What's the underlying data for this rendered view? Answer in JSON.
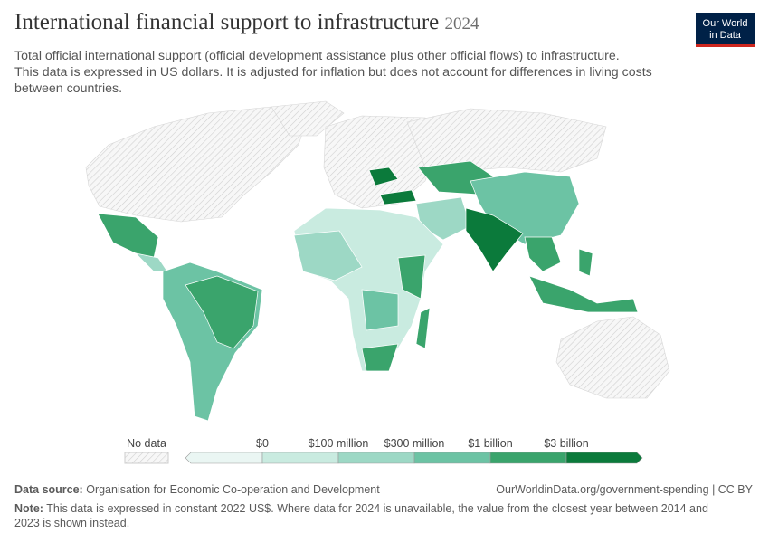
{
  "header": {
    "title": "International financial support to infrastructure",
    "year": "2024",
    "subtitle": [
      "Total official international support (official development assistance plus other official flows) to infrastructure.",
      "This data is expressed in US dollars. It is adjusted for inflation but does not account for differences in living costs",
      "between countries."
    ],
    "logo": [
      "Our World",
      "in Data"
    ]
  },
  "legend": {
    "no_data": "No data",
    "labels": [
      "$0",
      "$100 million",
      "$300 million",
      "$1 billion",
      "$3 billion"
    ],
    "colors": [
      "#eaf6f3",
      "#c9ebe0",
      "#9dd8c5",
      "#6cc3a4",
      "#3aa46c",
      "#0b7a3b"
    ]
  },
  "footer": {
    "source_label": "Data source:",
    "source": "Organisation for Economic Co-operation and Development",
    "url": "OurWorldinData.org/government-spending | CC BY",
    "note_label": "Note:",
    "note": [
      "This data is expressed in constant 2022 US$. Where data for 2024 is unavailable, the value from the closest year between 2014 and",
      "2023 is shown instead."
    ]
  }
}
